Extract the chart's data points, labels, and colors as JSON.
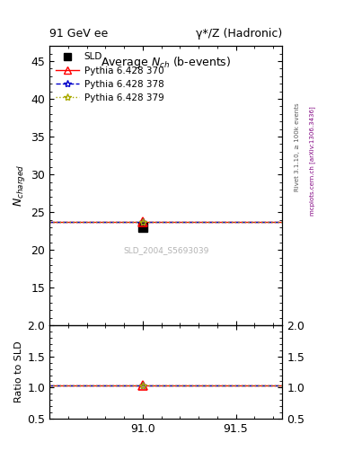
{
  "title_left": "91 GeV ee",
  "title_right": "γ*/Z (Hadronic)",
  "plot_title": "Average N_{ch} (b-events)",
  "ylabel_main": "N_{charged}",
  "ylabel_ratio": "Ratio to SLD",
  "right_label_top": "Rivet 3.1.10, ≥ 100k events",
  "right_label_bottom": "mcplots.cern.ch [arXiv:1306.3436]",
  "watermark": "SLD_2004_S5693039",
  "xlim": [
    90.5,
    91.75
  ],
  "ylim_main": [
    10,
    47
  ],
  "ylim_ratio": [
    0.5,
    2.0
  ],
  "xticks": [
    91.0,
    91.5
  ],
  "yticks_main": [
    15,
    20,
    25,
    30,
    35,
    40,
    45
  ],
  "yticks_ratio": [
    0.5,
    1.0,
    1.5,
    2.0
  ],
  "data_x": 91.0,
  "data_y_sld": 23.0,
  "data_y_p370": 23.75,
  "data_y_p378": 23.75,
  "data_y_p379": 23.75,
  "line_y_p370": 23.75,
  "line_y_p378": 23.75,
  "line_y_p379": 23.75,
  "ratio_p370": 1.033,
  "ratio_p378": 1.033,
  "ratio_p379": 1.033,
  "color_sld": "#000000",
  "color_p370": "#ff0000",
  "color_p378": "#0000cc",
  "color_p379": "#aaaa00",
  "bg_color": "#ffffff",
  "legend_entries": [
    "SLD",
    "Pythia 6.428 370",
    "Pythia 6.428 378",
    "Pythia 6.428 379"
  ]
}
